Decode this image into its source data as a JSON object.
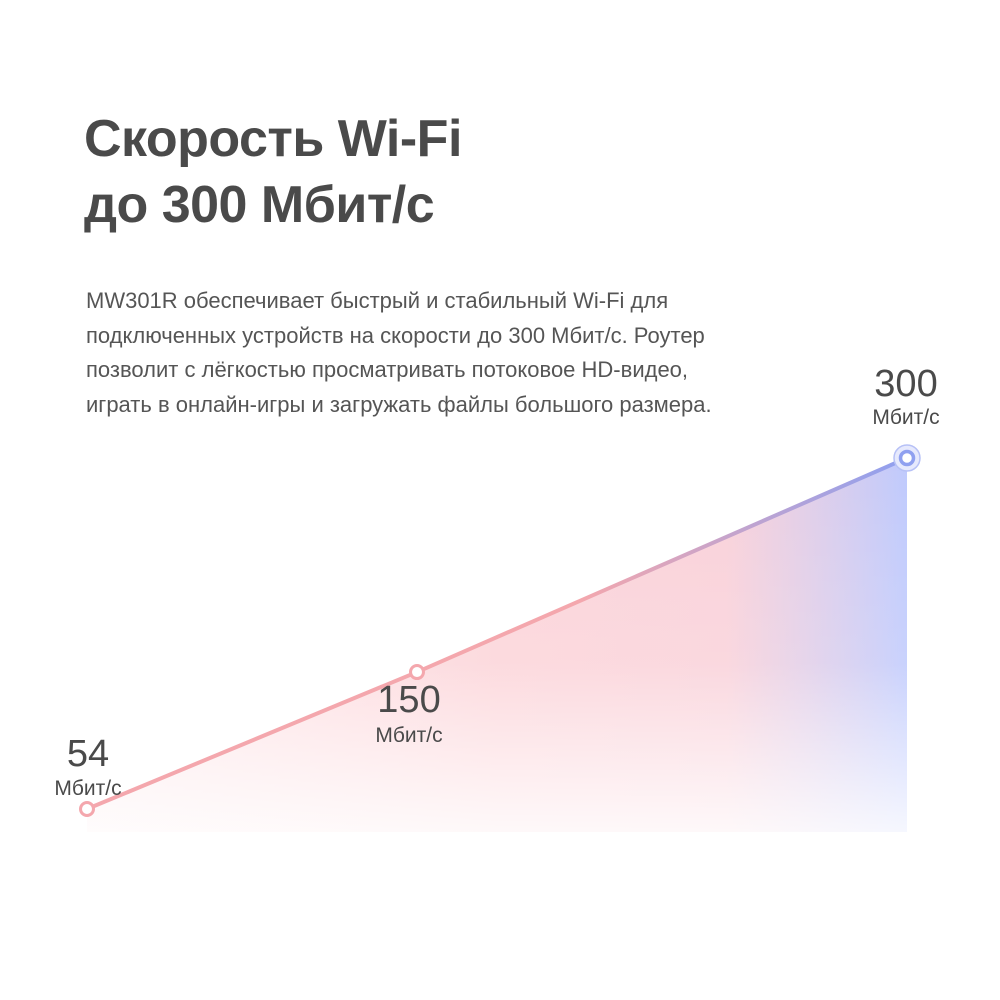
{
  "headline": {
    "line1": "Скорость Wi-Fi",
    "line2": "до 300 Мбит/с"
  },
  "description": "MW301R обеспечивает быстрый и стабильный Wi-Fi для подключенных устройств на скорости до 300 Мбит/с. Роутер позволит с лёгкостью просматривать потоковое HD-видео, играть в онлайн-игры и загружать файлы большого размера.",
  "colors": {
    "line_start": "#f4a7ad",
    "line_end": "#8fa0f0",
    "fill_pink": "#fbc6cc",
    "fill_blue": "#bfcafd",
    "text": "#4a4a4a"
  },
  "chart_data": {
    "type": "area",
    "title": "",
    "xlabel": "",
    "ylabel": "",
    "unit": "Мбит/с",
    "values": [
      54,
      150,
      300
    ],
    "labels": [
      "54",
      "150",
      "300"
    ],
    "ylim": [
      40,
      300
    ],
    "grid": false,
    "legend": "none"
  }
}
